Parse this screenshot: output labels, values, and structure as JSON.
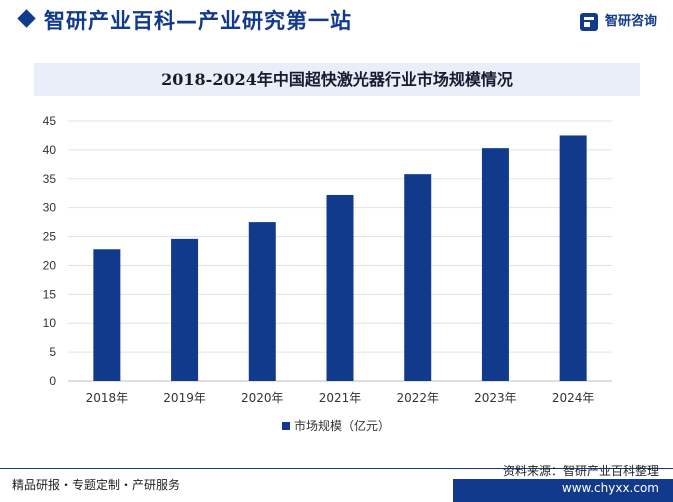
{
  "header": {
    "title": "智研产业百科—产业研究第一站",
    "brand_name": "智研咨询"
  },
  "chart_data": {
    "type": "bar",
    "title": "2018-2024年中国超快激光器行业市场规模情况",
    "categories": [
      "2018年",
      "2019年",
      "2020年",
      "2021年",
      "2022年",
      "2023年",
      "2024年"
    ],
    "series": [
      {
        "name": "市场规模（亿元）",
        "values": [
          22.8,
          24.6,
          27.5,
          32.2,
          35.8,
          40.3,
          42.5
        ],
        "color": "#123a8c"
      }
    ],
    "ylim": [
      0,
      45
    ],
    "yticks": [
      "0",
      "5",
      "10",
      "15",
      "20",
      "25",
      "30",
      "35",
      "40",
      "45"
    ],
    "grid": true,
    "legend_position": "bottom-center"
  },
  "footer": {
    "left": "精品研报・专题定制・产研服务",
    "source": "资料来源：智研产业百科整理",
    "url": "www.chyxx.com"
  }
}
